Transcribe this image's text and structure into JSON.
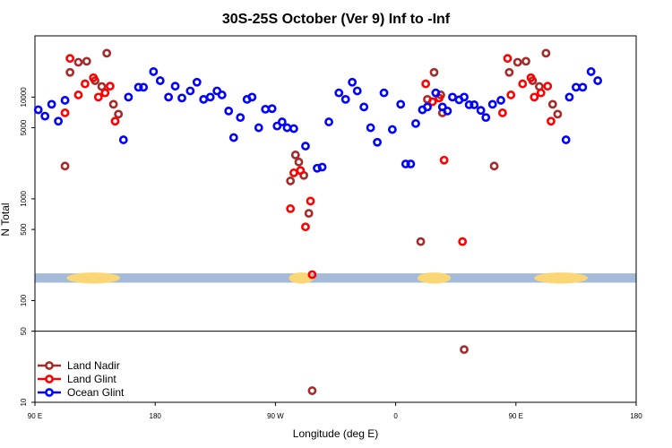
{
  "chart_data": {
    "type": "scatter",
    "title": "30S-25S October (Ver 9)   Inf to -Inf",
    "xlabel": "Longitude (deg E)",
    "ylabel": "N Total",
    "x_axis": {
      "range": [
        90,
        450
      ],
      "ticks": [
        {
          "value": 90,
          "label": "90 E"
        },
        {
          "value": 162,
          "label": "180"
        },
        {
          "value": 234,
          "label": "90 W"
        },
        {
          "value": 306,
          "label": "0"
        },
        {
          "value": 378,
          "label": "90 E"
        },
        {
          "value": 450,
          "label": "180"
        }
      ]
    },
    "y_axis": {
      "scale": "log",
      "range": [
        10,
        40000
      ],
      "ticks": [
        {
          "value": 10,
          "label": "10"
        },
        {
          "value": 50,
          "label": "50"
        },
        {
          "value": 100,
          "label": "100"
        },
        {
          "value": 500,
          "label": "500"
        },
        {
          "value": 1000,
          "label": "1000"
        },
        {
          "value": 5000,
          "label": "5000"
        },
        {
          "value": 10000,
          "label": "10000"
        }
      ]
    },
    "reference_line_y": 50,
    "land_mask_band": {
      "y_range": [
        150,
        185
      ],
      "ocean_color": "#a3bbd8",
      "land_color": "#fad674",
      "land_segments": [
        [
          109,
          141
        ],
        [
          242,
          257
        ],
        [
          319,
          339
        ],
        [
          389,
          421
        ]
      ]
    },
    "legend": {
      "position": "bottom-left",
      "entries": [
        "Land Nadir",
        "Land Glint",
        "Ocean Glint"
      ]
    },
    "series": [
      {
        "name": "Land Nadir",
        "color": "#a52a2a",
        "points": [
          [
            108,
            2100
          ],
          [
            111,
            17500
          ],
          [
            116,
            22000
          ],
          [
            121,
            22500
          ],
          [
            126,
            14500
          ],
          [
            130,
            12700
          ],
          [
            133,
            27000
          ],
          [
            137,
            8500
          ],
          [
            140,
            6800
          ],
          [
            243,
            1500
          ],
          [
            246,
            2700
          ],
          [
            248,
            2300
          ],
          [
            251,
            1700
          ],
          [
            254,
            720
          ],
          [
            256,
            13
          ],
          [
            321,
            380
          ],
          [
            325,
            9500
          ],
          [
            329,
            17500
          ],
          [
            333,
            10500
          ],
          [
            334,
            7000
          ],
          [
            347,
            33
          ],
          [
            365,
            2100
          ],
          [
            374,
            17500
          ],
          [
            379,
            22000
          ],
          [
            384,
            22500
          ],
          [
            388,
            14500
          ],
          [
            392,
            12700
          ],
          [
            396,
            27000
          ],
          [
            400,
            8500
          ],
          [
            403,
            6800
          ]
        ]
      },
      {
        "name": "Land Glint",
        "color": "#ff0000",
        "points": [
          [
            108,
            7000
          ],
          [
            111,
            24000
          ],
          [
            116,
            10500
          ],
          [
            120,
            13500
          ],
          [
            125,
            15500
          ],
          [
            128,
            10000
          ],
          [
            132,
            11000
          ],
          [
            135,
            12800
          ],
          [
            138,
            5800
          ],
          [
            243,
            800
          ],
          [
            245,
            1800
          ],
          [
            249,
            1900
          ],
          [
            252,
            530
          ],
          [
            255,
            950
          ],
          [
            256,
            180
          ],
          [
            324,
            13500
          ],
          [
            328,
            9000
          ],
          [
            332,
            9800
          ],
          [
            335,
            2400
          ],
          [
            346,
            380
          ],
          [
            370,
            7000
          ],
          [
            373,
            24000
          ],
          [
            375,
            10500
          ],
          [
            382,
            13500
          ],
          [
            387,
            15500
          ],
          [
            389,
            10000
          ],
          [
            393,
            11000
          ],
          [
            397,
            12800
          ],
          [
            399,
            5800
          ]
        ]
      },
      {
        "name": "Ocean Glint",
        "color": "#0000ff",
        "points": [
          [
            92,
            7500
          ],
          [
            96,
            6500
          ],
          [
            100,
            8500
          ],
          [
            104,
            5800
          ],
          [
            108,
            9300
          ],
          [
            143,
            3800
          ],
          [
            146,
            10000
          ],
          [
            152,
            12500
          ],
          [
            155,
            12500
          ],
          [
            161,
            17800
          ],
          [
            165,
            14500
          ],
          [
            170,
            10000
          ],
          [
            174,
            12800
          ],
          [
            178,
            9800
          ],
          [
            183,
            11500
          ],
          [
            187,
            14000
          ],
          [
            191,
            9500
          ],
          [
            195,
            10000
          ],
          [
            199,
            11500
          ],
          [
            202,
            10500
          ],
          [
            206,
            7300
          ],
          [
            209,
            4000
          ],
          [
            213,
            6300
          ],
          [
            217,
            9500
          ],
          [
            220,
            10000
          ],
          [
            224,
            5000
          ],
          [
            228,
            7600
          ],
          [
            232,
            7700
          ],
          [
            235,
            5200
          ],
          [
            238,
            5700
          ],
          [
            241,
            5000
          ],
          [
            245,
            4900
          ],
          [
            252,
            3300
          ],
          [
            259,
            2000
          ],
          [
            262,
            2050
          ],
          [
            266,
            5700
          ],
          [
            272,
            11000
          ],
          [
            276,
            9500
          ],
          [
            280,
            14000
          ],
          [
            283,
            11500
          ],
          [
            287,
            8000
          ],
          [
            291,
            5000
          ],
          [
            295,
            3600
          ],
          [
            299,
            11000
          ],
          [
            304,
            4800
          ],
          [
            309,
            8500
          ],
          [
            312,
            2200
          ],
          [
            315,
            2200
          ],
          [
            318,
            5500
          ],
          [
            322,
            7500
          ],
          [
            325,
            8000
          ],
          [
            330,
            11000
          ],
          [
            334,
            8000
          ],
          [
            337,
            7300
          ],
          [
            340,
            10000
          ],
          [
            344,
            9400
          ],
          [
            347,
            10000
          ],
          [
            350,
            8400
          ],
          [
            353,
            8400
          ],
          [
            357,
            7400
          ],
          [
            360,
            6300
          ],
          [
            364,
            8500
          ],
          [
            369,
            9300
          ],
          [
            408,
            3800
          ],
          [
            410,
            10000
          ],
          [
            414,
            12500
          ],
          [
            418,
            12500
          ],
          [
            423,
            17800
          ],
          [
            427,
            14500
          ]
        ]
      }
    ]
  }
}
